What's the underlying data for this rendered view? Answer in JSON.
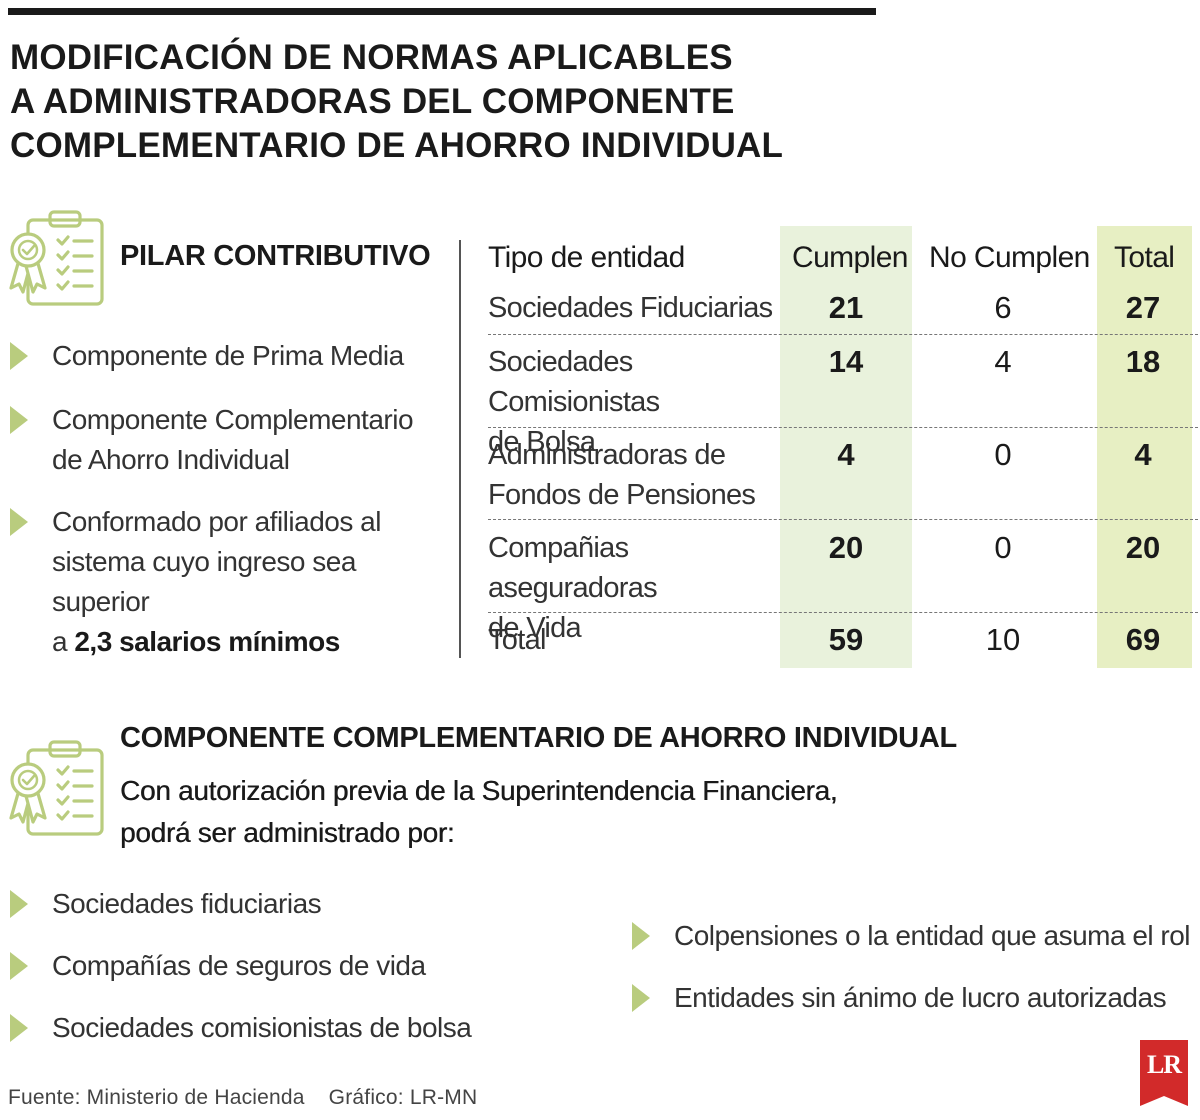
{
  "title": {
    "line1": "MODIFICACIÓN DE NORMAS APLICABLES",
    "line2": "A ADMINISTRADORAS DEL COMPONENTE",
    "line3": "COMPLEMENTARIO DE AHORRO INDIVIDUAL"
  },
  "colors": {
    "accent_green": "#b9cc7e",
    "icon_green": "#b9cc7e",
    "hl_cumplen": "#e9f2dc",
    "hl_total": "#e7efc3",
    "logo_red": "#d22a2a"
  },
  "pilar": {
    "heading": "PILAR CONTRIBUTIVO",
    "icon": "clipboard-award-icon",
    "items": [
      {
        "line1": "Componente de Prima Media"
      },
      {
        "line1": "Componente Complementario",
        "line2": "de Ahorro Individual"
      },
      {
        "line1": "Conformado por afiliados al",
        "line2": "sistema cuyo ingreso sea superior",
        "line3_pre": "a ",
        "line3_bold": "2,3 salarios mínimos"
      }
    ]
  },
  "chart_data": {
    "type": "table",
    "columns": [
      "Tipo de entidad",
      "Cumplen",
      "No Cumplen",
      "Total"
    ],
    "rows": [
      {
        "entity": "Sociedades Fiduciarias",
        "cumplen": 21,
        "no_cumplen": 6,
        "total": 27
      },
      {
        "entity": "Sociedades Comisionistas de Bolsa",
        "cumplen": 14,
        "no_cumplen": 4,
        "total": 18
      },
      {
        "entity": "Administradoras de Fondos de Pensiones",
        "cumplen": 4,
        "no_cumplen": 0,
        "total": 4
      },
      {
        "entity": "Compañias aseguradoras de Vida",
        "cumplen": 20,
        "no_cumplen": 0,
        "total": 20
      },
      {
        "entity": "Total",
        "cumplen": 59,
        "no_cumplen": 10,
        "total": 69
      }
    ]
  },
  "table_text": {
    "row2_l1": "Sociedades Comisionistas",
    "row2_l2": "de Bolsa",
    "row3_l1": "Administradoras de",
    "row3_l2": "Fondos de Pensiones",
    "row4_l1": "Compañias aseguradoras",
    "row4_l2": "de Vida"
  },
  "componente": {
    "heading": "COMPONENTE COMPLEMENTARIO DE AHORRO INDIVIDUAL",
    "icon": "clipboard-award-icon",
    "sub1": "Con autorización previa de la Superintendencia Financiera,",
    "sub2": "podrá ser administrado por:",
    "left_items": [
      "Sociedades fiduciarias",
      "Compañías de seguros de vida",
      "Sociedades comisionistas de bolsa"
    ],
    "right_items": [
      "Colpensiones o la entidad que asuma el rol",
      "Entidades sin ánimo de lucro autorizadas"
    ]
  },
  "footer": {
    "source": "Fuente: Ministerio de Hacienda",
    "graphic": "Gráfico: LR-MN",
    "logo": "LR"
  }
}
